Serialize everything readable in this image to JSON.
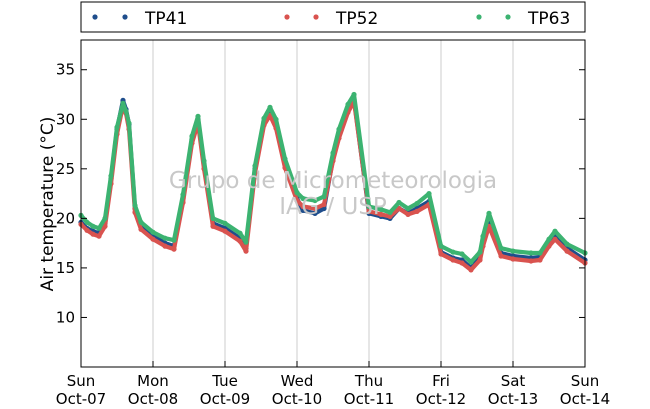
{
  "chart_data": {
    "type": "scatter",
    "ylabel": "Air temperature (°C)",
    "ylim": [
      5,
      38
    ],
    "yticks": [
      10,
      15,
      20,
      25,
      30,
      35
    ],
    "x_start": "2012-10-07T00:00",
    "x_end": "2012-10-14T00:00",
    "x_ticks": [
      {
        "day": "Sun",
        "date": "Oct-07"
      },
      {
        "day": "Mon",
        "date": "Oct-08"
      },
      {
        "day": "Tue",
        "date": "Oct-09"
      },
      {
        "day": "Wed",
        "date": "Oct-10"
      },
      {
        "day": "Thu",
        "date": "Oct-11"
      },
      {
        "day": "Fri",
        "date": "Oct-12"
      },
      {
        "day": "Sat",
        "date": "Oct-13"
      },
      {
        "day": "Sun",
        "date": "Oct-14"
      }
    ],
    "grid": "vertical",
    "legend_position": "top",
    "watermark": [
      "Grupo de Micrometeorologia",
      "IAG / USP"
    ],
    "series": [
      {
        "name": "TP41",
        "color": "#1f4e8c",
        "x": [
          "2012-10-07T00:00",
          "2012-10-07T02:00",
          "2012-10-07T04:00",
          "2012-10-07T06:00",
          "2012-10-07T08:00",
          "2012-10-07T10:00",
          "2012-10-07T12:00",
          "2012-10-07T14:00",
          "2012-10-07T15:00",
          "2012-10-07T16:00",
          "2012-10-07T18:00",
          "2012-10-07T20:00",
          "2012-10-08T00:00",
          "2012-10-08T04:00",
          "2012-10-08T07:00",
          "2012-10-08T10:00",
          "2012-10-08T13:00",
          "2012-10-08T15:00",
          "2012-10-08T17:00",
          "2012-10-08T20:00",
          "2012-10-09T00:00",
          "2012-10-09T05:00",
          "2012-10-09T07:00",
          "2012-10-09T10:00",
          "2012-10-09T13:00",
          "2012-10-09T15:00",
          "2012-10-09T17:00",
          "2012-10-09T20:00",
          "2012-10-10T00:00",
          "2012-10-10T02:00",
          "2012-10-10T06:00",
          "2012-10-10T09:00",
          "2012-10-10T12:00",
          "2012-10-10T14:00",
          "2012-10-10T17:00",
          "2012-10-10T19:00",
          "2012-10-11T00:00",
          "2012-10-11T04:00",
          "2012-10-11T07:00",
          "2012-10-11T10:00",
          "2012-10-11T13:00",
          "2012-10-11T16:00",
          "2012-10-11T20:00",
          "2012-10-12T00:00",
          "2012-10-12T04:00",
          "2012-10-12T07:00",
          "2012-10-12T10:00",
          "2012-10-12T13:00",
          "2012-10-12T14:00",
          "2012-10-12T16:00",
          "2012-10-12T20:00",
          "2012-10-13T00:00",
          "2012-10-13T06:00",
          "2012-10-13T09:00",
          "2012-10-13T12:00",
          "2012-10-13T14:00",
          "2012-10-13T18:00",
          "2012-10-14T00:00"
        ],
        "y": [
          19.6,
          19.0,
          18.7,
          18.5,
          19.5,
          24.0,
          29.0,
          31.9,
          31.0,
          29.5,
          21.0,
          19.2,
          18.2,
          17.5,
          17.2,
          22.0,
          28.0,
          30.0,
          25.5,
          19.5,
          19.0,
          18.0,
          17.0,
          25.0,
          29.8,
          30.8,
          29.5,
          25.5,
          22.0,
          20.8,
          20.5,
          21.0,
          26.0,
          28.5,
          31.0,
          32.0,
          20.5,
          20.2,
          20.0,
          21.0,
          20.5,
          21.0,
          21.7,
          16.6,
          16.0,
          15.8,
          15.0,
          16.0,
          17.5,
          19.5,
          16.5,
          16.2,
          16.0,
          16.1,
          17.5,
          18.2,
          17.0,
          15.8
        ]
      },
      {
        "name": "TP52",
        "color": "#d9534f",
        "x": [
          "2012-10-07T00:00",
          "2012-10-07T02:00",
          "2012-10-07T04:00",
          "2012-10-07T06:00",
          "2012-10-07T08:00",
          "2012-10-07T10:00",
          "2012-10-07T12:00",
          "2012-10-07T14:00",
          "2012-10-07T15:00",
          "2012-10-07T16:00",
          "2012-10-07T18:00",
          "2012-10-07T20:00",
          "2012-10-08T00:00",
          "2012-10-08T04:00",
          "2012-10-08T07:00",
          "2012-10-08T10:00",
          "2012-10-08T13:00",
          "2012-10-08T15:00",
          "2012-10-08T17:00",
          "2012-10-08T20:00",
          "2012-10-09T00:00",
          "2012-10-09T05:00",
          "2012-10-09T07:00",
          "2012-10-09T10:00",
          "2012-10-09T13:00",
          "2012-10-09T15:00",
          "2012-10-09T17:00",
          "2012-10-09T20:00",
          "2012-10-10T00:00",
          "2012-10-10T02:00",
          "2012-10-10T06:00",
          "2012-10-10T09:00",
          "2012-10-10T12:00",
          "2012-10-10T14:00",
          "2012-10-10T17:00",
          "2012-10-10T19:00",
          "2012-10-11T00:00",
          "2012-10-11T04:00",
          "2012-10-11T07:00",
          "2012-10-11T10:00",
          "2012-10-11T13:00",
          "2012-10-11T16:00",
          "2012-10-11T20:00",
          "2012-10-12T00:00",
          "2012-10-12T04:00",
          "2012-10-12T07:00",
          "2012-10-12T10:00",
          "2012-10-12T13:00",
          "2012-10-12T14:00",
          "2012-10-12T16:00",
          "2012-10-12T20:00",
          "2012-10-13T00:00",
          "2012-10-13T06:00",
          "2012-10-13T09:00",
          "2012-10-13T12:00",
          "2012-10-13T14:00",
          "2012-10-13T18:00",
          "2012-10-14T00:00"
        ],
        "y": [
          19.4,
          18.8,
          18.4,
          18.2,
          19.2,
          23.5,
          28.5,
          31.4,
          30.6,
          29.0,
          20.6,
          18.9,
          17.9,
          17.2,
          16.9,
          21.6,
          27.6,
          29.6,
          25.0,
          19.2,
          18.7,
          17.7,
          16.7,
          24.6,
          29.4,
          30.4,
          29.1,
          25.1,
          21.8,
          21.2,
          21.0,
          21.4,
          25.8,
          28.1,
          30.7,
          31.8,
          20.7,
          20.4,
          20.2,
          21.0,
          20.4,
          20.7,
          21.4,
          16.4,
          15.8,
          15.5,
          14.8,
          15.8,
          17.2,
          19.2,
          16.2,
          15.9,
          15.7,
          15.8,
          17.2,
          17.9,
          16.7,
          15.5
        ]
      },
      {
        "name": "TP63",
        "color": "#3cb371",
        "x": [
          "2012-10-07T00:00",
          "2012-10-07T02:00",
          "2012-10-07T04:00",
          "2012-10-07T06:00",
          "2012-10-07T08:00",
          "2012-10-07T10:00",
          "2012-10-07T12:00",
          "2012-10-07T14:00",
          "2012-10-07T15:00",
          "2012-10-07T16:00",
          "2012-10-07T18:00",
          "2012-10-07T20:00",
          "2012-10-08T00:00",
          "2012-10-08T04:00",
          "2012-10-08T07:00",
          "2012-10-08T10:00",
          "2012-10-08T13:00",
          "2012-10-08T15:00",
          "2012-10-08T17:00",
          "2012-10-08T20:00",
          "2012-10-09T00:00",
          "2012-10-09T05:00",
          "2012-10-09T07:00",
          "2012-10-09T10:00",
          "2012-10-09T13:00",
          "2012-10-09T15:00",
          "2012-10-09T17:00",
          "2012-10-09T20:00",
          "2012-10-10T00:00",
          "2012-10-10T02:00",
          "2012-10-10T06:00",
          "2012-10-10T09:00",
          "2012-10-10T12:00",
          "2012-10-10T14:00",
          "2012-10-10T17:00",
          "2012-10-10T19:00",
          "2012-10-11T00:00",
          "2012-10-11T04:00",
          "2012-10-11T07:00",
          "2012-10-11T10:00",
          "2012-10-11T13:00",
          "2012-10-11T16:00",
          "2012-10-11T20:00",
          "2012-10-12T00:00",
          "2012-10-12T04:00",
          "2012-10-12T07:00",
          "2012-10-12T10:00",
          "2012-10-12T13:00",
          "2012-10-12T14:00",
          "2012-10-12T16:00",
          "2012-10-12T20:00",
          "2012-10-13T00:00",
          "2012-10-13T06:00",
          "2012-10-13T09:00",
          "2012-10-13T12:00",
          "2012-10-13T14:00",
          "2012-10-13T18:00",
          "2012-10-14T00:00"
        ],
        "y": [
          20.3,
          19.6,
          19.2,
          19.0,
          20.0,
          24.3,
          29.2,
          31.6,
          30.8,
          29.6,
          21.3,
          19.6,
          18.6,
          18.0,
          17.8,
          22.4,
          28.3,
          30.3,
          25.8,
          20.0,
          19.5,
          18.5,
          17.6,
          25.3,
          30.1,
          31.2,
          30.0,
          26.0,
          22.6,
          22.0,
          21.8,
          22.2,
          26.6,
          29.0,
          31.5,
          32.5,
          21.2,
          20.9,
          20.6,
          21.6,
          21.0,
          21.5,
          22.5,
          17.2,
          16.6,
          16.4,
          15.6,
          16.6,
          18.2,
          20.5,
          17.0,
          16.7,
          16.5,
          16.5,
          17.9,
          18.7,
          17.4,
          16.5
        ]
      }
    ]
  }
}
